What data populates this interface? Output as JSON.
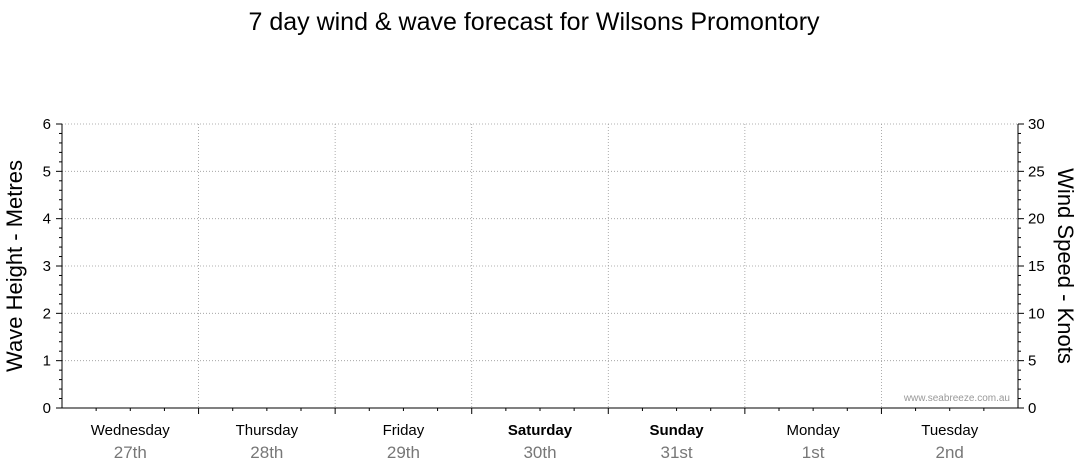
{
  "chart_data": {
    "type": "line",
    "title": "7 day wind & wave forecast for Wilsons Promontory",
    "ylabel_left": "Wave Height - Metres",
    "ylabel_right": "Wind Speed - Knots",
    "ylim_left": [
      0,
      6
    ],
    "ylim_right": [
      0,
      30
    ],
    "left_ticks": [
      "0",
      "1",
      "2",
      "3",
      "4",
      "5",
      "6"
    ],
    "right_ticks": [
      "0",
      "5",
      "10",
      "15",
      "20",
      "25",
      "30"
    ],
    "grid": true,
    "days": [
      {
        "name": "Wednesday",
        "date": "27th",
        "bold": false
      },
      {
        "name": "Thursday",
        "date": "28th",
        "bold": false
      },
      {
        "name": "Friday",
        "date": "29th",
        "bold": false
      },
      {
        "name": "Saturday",
        "date": "30th",
        "bold": true
      },
      {
        "name": "Sunday",
        "date": "31st",
        "bold": true
      },
      {
        "name": "Monday",
        "date": "1st",
        "bold": false
      },
      {
        "name": "Tuesday",
        "date": "2nd",
        "bold": false
      }
    ],
    "series": []
  },
  "watermark": "www.seabreeze.com.au"
}
